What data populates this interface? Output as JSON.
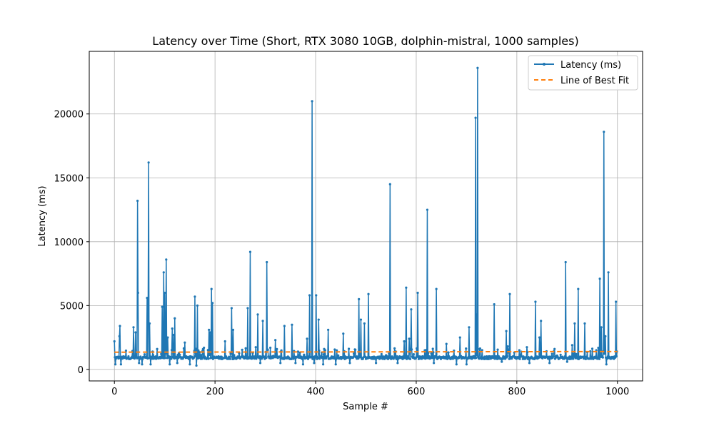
{
  "chart_data": {
    "type": "line",
    "title": "Latency over Time (Short, RTX 3080 10GB, dolphin-mistral, 1000 samples)",
    "xlabel": "Sample #",
    "ylabel": "Latency (ms)",
    "xlim": [
      -50,
      1050
    ],
    "ylim": [
      -900,
      24900
    ],
    "x_ticks": [
      0,
      200,
      400,
      600,
      800,
      1000
    ],
    "y_ticks": [
      0,
      5000,
      10000,
      15000,
      20000
    ],
    "grid": true,
    "legend_position": "top-right",
    "baseline_ms": 920,
    "series": [
      {
        "name": "Latency (ms)",
        "color": "#1f77b4",
        "style": "solid-line-with-point-markers",
        "spikes": [
          [
            0,
            2200
          ],
          [
            2,
            400
          ],
          [
            10,
            2600
          ],
          [
            11,
            3400
          ],
          [
            13,
            400
          ],
          [
            38,
            3300
          ],
          [
            42,
            2900
          ],
          [
            46,
            13200
          ],
          [
            47,
            6000
          ],
          [
            49,
            500
          ],
          [
            52,
            1000
          ],
          [
            55,
            400
          ],
          [
            65,
            5600
          ],
          [
            67,
            4700
          ],
          [
            68,
            16200
          ],
          [
            70,
            3600
          ],
          [
            72,
            400
          ],
          [
            85,
            1600
          ],
          [
            95,
            4900
          ],
          [
            98,
            7600
          ],
          [
            100,
            6000
          ],
          [
            103,
            8600
          ],
          [
            106,
            2500
          ],
          [
            110,
            400
          ],
          [
            115,
            3200
          ],
          [
            118,
            2700
          ],
          [
            120,
            4000
          ],
          [
            125,
            500
          ],
          [
            140,
            2100
          ],
          [
            150,
            400
          ],
          [
            160,
            5700
          ],
          [
            163,
            300
          ],
          [
            165,
            5000
          ],
          [
            178,
            1700
          ],
          [
            188,
            3100
          ],
          [
            190,
            2900
          ],
          [
            193,
            6300
          ],
          [
            195,
            5200
          ],
          [
            220,
            2200
          ],
          [
            233,
            4800
          ],
          [
            236,
            3100
          ],
          [
            265,
            4800
          ],
          [
            270,
            9200
          ],
          [
            285,
            4300
          ],
          [
            290,
            500
          ],
          [
            295,
            3800
          ],
          [
            303,
            8400
          ],
          [
            320,
            2300
          ],
          [
            330,
            500
          ],
          [
            338,
            3400
          ],
          [
            353,
            3500
          ],
          [
            360,
            500
          ],
          [
            375,
            400
          ],
          [
            383,
            2400
          ],
          [
            388,
            5800
          ],
          [
            393,
            21000
          ],
          [
            397,
            500
          ],
          [
            401,
            5800
          ],
          [
            406,
            3900
          ],
          [
            415,
            400
          ],
          [
            425,
            3100
          ],
          [
            440,
            400
          ],
          [
            455,
            2800
          ],
          [
            468,
            500
          ],
          [
            486,
            5500
          ],
          [
            490,
            3900
          ],
          [
            497,
            3600
          ],
          [
            505,
            5900
          ],
          [
            520,
            500
          ],
          [
            548,
            14500
          ],
          [
            563,
            500
          ],
          [
            576,
            2200
          ],
          [
            580,
            6400
          ],
          [
            586,
            2400
          ],
          [
            590,
            4700
          ],
          [
            603,
            6000
          ],
          [
            622,
            12500
          ],
          [
            635,
            500
          ],
          [
            640,
            6300
          ],
          [
            660,
            2000
          ],
          [
            680,
            400
          ],
          [
            687,
            2500
          ],
          [
            700,
            400
          ],
          [
            705,
            3300
          ],
          [
            718,
            19700
          ],
          [
            720,
            4300
          ],
          [
            722,
            23600
          ],
          [
            726,
            1600
          ],
          [
            755,
            5100
          ],
          [
            770,
            600
          ],
          [
            779,
            3000
          ],
          [
            782,
            1800
          ],
          [
            786,
            5900
          ],
          [
            805,
            1500
          ],
          [
            825,
            500
          ],
          [
            837,
            5300
          ],
          [
            845,
            2500
          ],
          [
            848,
            3800
          ],
          [
            865,
            500
          ],
          [
            875,
            1600
          ],
          [
            897,
            8400
          ],
          [
            900,
            600
          ],
          [
            910,
            1900
          ],
          [
            915,
            3600
          ],
          [
            918,
            1200
          ],
          [
            922,
            6300
          ],
          [
            935,
            3600
          ],
          [
            965,
            7100
          ],
          [
            968,
            3300
          ],
          [
            973,
            18600
          ],
          [
            976,
            2600
          ],
          [
            978,
            400
          ],
          [
            982,
            7600
          ],
          [
            997,
            5300
          ],
          [
            999,
            1400
          ]
        ]
      },
      {
        "name": "Line of Best Fit",
        "color": "#ff7f0e",
        "style": "dashed",
        "x": [
          0,
          1000
        ],
        "y": [
          1350,
          1400
        ]
      }
    ]
  }
}
